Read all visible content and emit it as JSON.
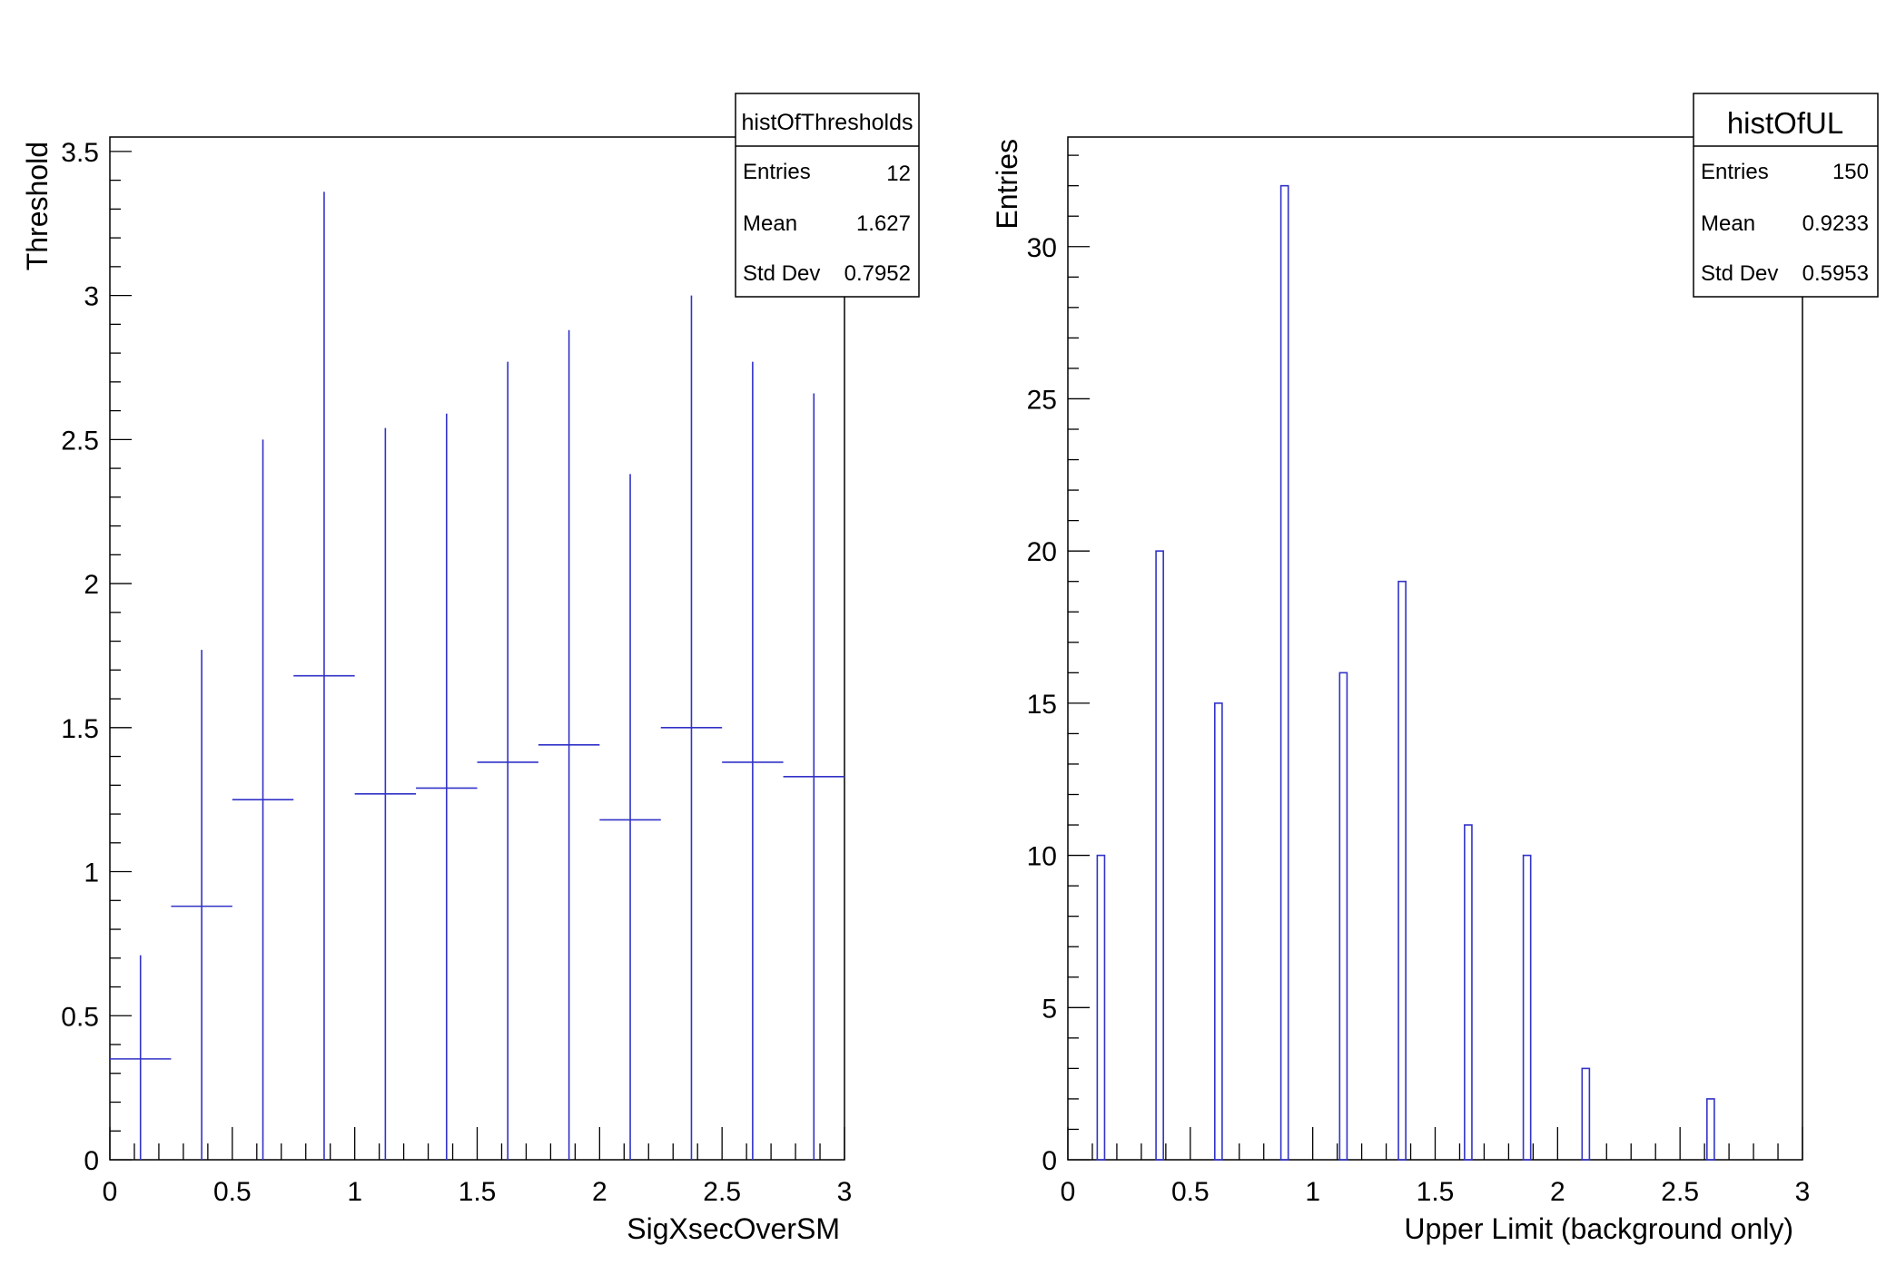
{
  "chart_data": [
    {
      "type": "scatter",
      "name": "histOfThresholds",
      "xlabel": "SigXsecOverSM",
      "ylabel": "Threshold",
      "xlim": [
        0,
        3
      ],
      "ylim": [
        0,
        3.55
      ],
      "x_ticks": [
        "0",
        "0.5",
        "1",
        "1.5",
        "2",
        "2.5",
        "3"
      ],
      "y_ticks": [
        "0",
        "0.5",
        "1",
        "1.5",
        "2",
        "2.5",
        "3",
        "3.5"
      ],
      "x_bin_edges": [
        0,
        0.25,
        0.5,
        0.75,
        1.0,
        1.25,
        1.5,
        1.75,
        2.0,
        2.25,
        2.5,
        2.75,
        3.0
      ],
      "points": [
        {
          "x": 0.125,
          "y": 0.35,
          "ylow": 0.0,
          "yhigh": 0.71
        },
        {
          "x": 0.375,
          "y": 0.88,
          "ylow": 0.0,
          "yhigh": 1.77
        },
        {
          "x": 0.625,
          "y": 1.25,
          "ylow": 0.0,
          "yhigh": 2.5
        },
        {
          "x": 0.875,
          "y": 1.68,
          "ylow": 0.0,
          "yhigh": 3.36
        },
        {
          "x": 1.125,
          "y": 1.27,
          "ylow": 0.0,
          "yhigh": 2.54
        },
        {
          "x": 1.375,
          "y": 1.29,
          "ylow": 0.0,
          "yhigh": 2.59
        },
        {
          "x": 1.625,
          "y": 1.38,
          "ylow": 0.0,
          "yhigh": 2.77
        },
        {
          "x": 1.875,
          "y": 1.44,
          "ylow": 0.0,
          "yhigh": 2.88
        },
        {
          "x": 2.125,
          "y": 1.18,
          "ylow": 0.0,
          "yhigh": 2.38
        },
        {
          "x": 2.375,
          "y": 1.5,
          "ylow": 0.0,
          "yhigh": 3.0
        },
        {
          "x": 2.625,
          "y": 1.38,
          "ylow": 0.0,
          "yhigh": 2.77
        },
        {
          "x": 2.875,
          "y": 1.33,
          "ylow": 0.0,
          "yhigh": 2.66
        }
      ],
      "stats": {
        "title": "histOfThresholds",
        "rows": [
          {
            "label": "Entries",
            "value": "12"
          },
          {
            "label": "Mean",
            "value": "1.627"
          },
          {
            "label": "Std Dev",
            "value": "0.7952"
          }
        ]
      },
      "color": "#3232c8"
    },
    {
      "type": "bar",
      "name": "histOfUL",
      "xlabel": "Upper Limit (background only)",
      "ylabel": "Entries",
      "xlim": [
        0,
        3
      ],
      "ylim": [
        0,
        33.6
      ],
      "x_ticks": [
        "0",
        "0.5",
        "1",
        "1.5",
        "2",
        "2.5",
        "3"
      ],
      "y_ticks": [
        "0",
        "5",
        "10",
        "15",
        "20",
        "25",
        "30"
      ],
      "bin_width": 0.03,
      "bins": [
        {
          "x_low": 0.12,
          "count": 10
        },
        {
          "x_low": 0.36,
          "count": 20
        },
        {
          "x_low": 0.6,
          "count": 15
        },
        {
          "x_low": 0.87,
          "count": 32
        },
        {
          "x_low": 1.11,
          "count": 16
        },
        {
          "x_low": 1.35,
          "count": 19
        },
        {
          "x_low": 1.62,
          "count": 11
        },
        {
          "x_low": 1.86,
          "count": 10
        },
        {
          "x_low": 2.1,
          "count": 3
        },
        {
          "x_low": 2.61,
          "count": 2
        }
      ],
      "stats": {
        "title": "histOfUL",
        "rows": [
          {
            "label": "Entries",
            "value": "150"
          },
          {
            "label": "Mean",
            "value": "0.9233"
          },
          {
            "label": "Std Dev",
            "value": "0.5953"
          }
        ]
      },
      "color": "#3232c8"
    }
  ]
}
